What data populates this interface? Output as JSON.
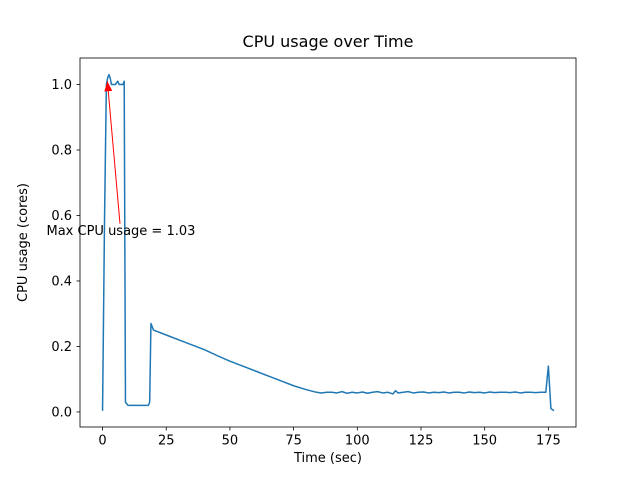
{
  "chart_data": {
    "type": "line",
    "title": "CPU usage over Time",
    "xlabel": "Time (sec)",
    "ylabel": "CPU usage (cores)",
    "xlim": [
      -8.85,
      185.85
    ],
    "ylim": [
      -0.046,
      1.081
    ],
    "grid": false,
    "legend": "none",
    "background": "#ffffff",
    "x_ticks": [
      0,
      25,
      50,
      75,
      100,
      125,
      150,
      175
    ],
    "x_tick_labels": [
      "0",
      "25",
      "50",
      "75",
      "100",
      "125",
      "150",
      "175"
    ],
    "y_ticks": [
      0.0,
      0.2,
      0.4,
      0.6,
      0.8,
      1.0
    ],
    "y_tick_labels": [
      "0.0",
      "0.2",
      "0.4",
      "0.6",
      "0.8",
      "1.0"
    ],
    "series": [
      {
        "name": "cpu-usage",
        "color": "#1f77b4",
        "x": [
          0,
          0.8,
          1.5,
          2,
          2.5,
          3,
          3.5,
          4,
          5,
          6,
          6.5,
          7,
          8,
          8.5,
          9,
          10,
          12,
          14,
          16,
          18,
          18.5,
          19,
          20,
          25,
          30,
          35,
          40,
          45,
          50,
          55,
          60,
          65,
          70,
          75,
          80,
          84,
          86,
          88,
          90,
          92,
          94,
          96,
          98,
          100,
          102,
          104,
          106,
          108,
          110,
          112,
          114,
          115,
          116,
          118,
          120,
          122,
          124,
          126,
          128,
          130,
          132,
          134,
          136,
          138,
          140,
          142,
          144,
          146,
          148,
          150,
          152,
          154,
          156,
          158,
          160,
          162,
          164,
          166,
          168,
          170,
          172,
          174,
          175,
          176,
          177
        ],
        "y": [
          0.005,
          0.6,
          1.0,
          1.02,
          1.03,
          1.02,
          1.0,
          1.0,
          1.0,
          1.01,
          1.0,
          1.0,
          1.0,
          1.01,
          0.03,
          0.02,
          0.02,
          0.02,
          0.02,
          0.02,
          0.03,
          0.27,
          0.25,
          0.235,
          0.22,
          0.205,
          0.19,
          0.172,
          0.155,
          0.14,
          0.125,
          0.11,
          0.095,
          0.08,
          0.068,
          0.06,
          0.058,
          0.06,
          0.06,
          0.058,
          0.062,
          0.057,
          0.06,
          0.058,
          0.061,
          0.057,
          0.06,
          0.062,
          0.058,
          0.06,
          0.055,
          0.065,
          0.058,
          0.06,
          0.062,
          0.058,
          0.06,
          0.061,
          0.058,
          0.06,
          0.059,
          0.061,
          0.058,
          0.06,
          0.06,
          0.058,
          0.061,
          0.059,
          0.06,
          0.058,
          0.061,
          0.059,
          0.06,
          0.06,
          0.059,
          0.061,
          0.058,
          0.06,
          0.06,
          0.059,
          0.06,
          0.06,
          0.14,
          0.01,
          0.005
        ]
      }
    ],
    "annotation": {
      "text": "Max CPU usage = 1.03",
      "color": "#ff0000",
      "text_xy": [
        -22,
        0.54
      ],
      "arrow_from": [
        6.85,
        0.575
      ],
      "arrow_to": [
        1.9,
        1.01
      ]
    }
  }
}
